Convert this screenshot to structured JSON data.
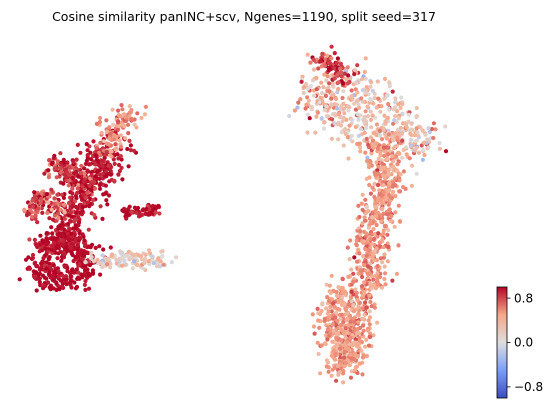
{
  "chart_data": {
    "type": "scatter",
    "title": "Cosine similarity panINC+scv, Ngenes=1190, split seed=317",
    "xlabel": "",
    "ylabel": "",
    "axes_visible": false,
    "colormap": "coolwarm",
    "colorbar": {
      "range": [
        -1,
        1
      ],
      "ticks": [
        0.8,
        0.0,
        -0.8
      ],
      "tick_labels": [
        "0.8",
        "0.0",
        "−0.8"
      ],
      "placement": "bottom-right"
    },
    "clusters": [
      {
        "name": "",
        "value_mean": 0.95,
        "value_spread": 0.08,
        "count": 420,
        "polyline": [
          [
            0.07,
            0.64
          ],
          [
            0.1,
            0.56
          ],
          [
            0.14,
            0.46
          ],
          [
            0.18,
            0.38
          ],
          [
            0.2,
            0.3
          ]
        ],
        "width": 0.045
      },
      {
        "name": "",
        "value_mean": 0.55,
        "value_spread": 0.15,
        "count": 110,
        "polyline": [
          [
            0.19,
            0.33
          ],
          [
            0.21,
            0.27
          ],
          [
            0.235,
            0.22
          ],
          [
            0.225,
            0.2
          ]
        ],
        "width": 0.03
      },
      {
        "name": "",
        "value_mean": 0.9,
        "value_spread": 0.15,
        "count": 160,
        "polyline": [
          [
            0.09,
            0.36
          ],
          [
            0.13,
            0.4
          ],
          [
            0.16,
            0.43
          ]
        ],
        "width": 0.03
      },
      {
        "name": "",
        "value_mean": 0.65,
        "value_spread": 0.25,
        "count": 60,
        "polyline": [
          [
            0.06,
            0.44
          ],
          [
            0.08,
            0.47
          ],
          [
            0.11,
            0.5
          ]
        ],
        "width": 0.022
      },
      {
        "name": "",
        "value_mean": 0.8,
        "value_spread": 0.15,
        "count": 70,
        "polyline": [
          [
            0.06,
            0.45
          ],
          [
            0.04,
            0.5
          ]
        ],
        "width": 0.018
      },
      {
        "name": "",
        "value_mean": 0.98,
        "value_spread": 0.05,
        "count": 300,
        "polyline": [
          [
            0.06,
            0.66
          ],
          [
            0.09,
            0.7
          ],
          [
            0.13,
            0.68
          ],
          [
            0.15,
            0.62
          ],
          [
            0.12,
            0.57
          ],
          [
            0.08,
            0.6
          ]
        ],
        "width": 0.035
      },
      {
        "name": "",
        "value_mean": 0.95,
        "value_spread": 0.1,
        "count": 70,
        "polyline": [
          [
            0.22,
            0.5
          ],
          [
            0.26,
            0.5
          ],
          [
            0.3,
            0.49
          ]
        ],
        "width": 0.015
      },
      {
        "name": "",
        "value_mean": 0.2,
        "value_spread": 0.2,
        "count": 110,
        "polyline": [
          [
            0.17,
            0.63
          ],
          [
            0.21,
            0.64
          ],
          [
            0.25,
            0.63
          ],
          [
            0.29,
            0.63
          ],
          [
            0.31,
            0.64
          ]
        ],
        "width": 0.025
      },
      {
        "name": "",
        "value_mean": 0.3,
        "value_spread": 0.25,
        "count": 480,
        "polyline": [
          [
            0.68,
            0.1
          ],
          [
            0.72,
            0.16
          ],
          [
            0.76,
            0.2
          ],
          [
            0.8,
            0.26
          ],
          [
            0.84,
            0.3
          ],
          [
            0.79,
            0.32
          ],
          [
            0.73,
            0.28
          ],
          [
            0.66,
            0.22
          ],
          [
            0.62,
            0.18
          ],
          [
            0.64,
            0.12
          ]
        ],
        "width": 0.055
      },
      {
        "name": "",
        "value_mean": 0.85,
        "value_spread": 0.2,
        "count": 80,
        "polyline": [
          [
            0.63,
            0.05
          ],
          [
            0.66,
            0.08
          ],
          [
            0.68,
            0.13
          ]
        ],
        "width": 0.025
      },
      {
        "name": "",
        "value_mean": 0.55,
        "value_spread": 0.12,
        "count": 780,
        "polyline": [
          [
            0.75,
            0.3
          ],
          [
            0.77,
            0.38
          ],
          [
            0.76,
            0.46
          ],
          [
            0.74,
            0.56
          ],
          [
            0.73,
            0.64
          ],
          [
            0.72,
            0.72
          ],
          [
            0.71,
            0.8
          ],
          [
            0.69,
            0.88
          ],
          [
            0.68,
            0.95
          ]
        ],
        "width": 0.04
      },
      {
        "name": "",
        "value_mean": 0.5,
        "value_spread": 0.12,
        "count": 260,
        "polyline": [
          [
            0.67,
            0.72
          ],
          [
            0.66,
            0.8
          ],
          [
            0.67,
            0.88
          ],
          [
            0.69,
            0.93
          ]
        ],
        "width": 0.035
      }
    ]
  }
}
